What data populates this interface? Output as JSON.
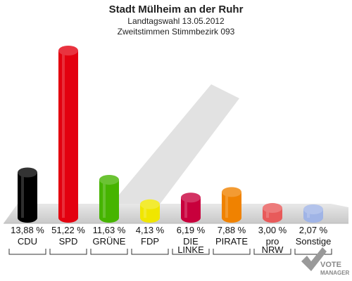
{
  "chart_data": {
    "type": "bar",
    "title": "Stadt Mülheim an der Ruhr",
    "subtitle1": "Landtagswahl 13.05.2012",
    "subtitle2": "Zweitstimmen Stimmbezirk 093",
    "categories": [
      {
        "lines": [
          "CDU"
        ]
      },
      {
        "lines": [
          "SPD"
        ]
      },
      {
        "lines": [
          "GRÜNE"
        ]
      },
      {
        "lines": [
          "FDP"
        ]
      },
      {
        "lines": [
          "DIE",
          "LINKE"
        ]
      },
      {
        "lines": [
          "PIRATE"
        ]
      },
      {
        "lines": [
          "pro",
          "NRW"
        ]
      },
      {
        "lines": [
          "Sonstige"
        ]
      }
    ],
    "values": [
      13.88,
      51.22,
      11.63,
      4.13,
      6.19,
      7.88,
      3.0,
      2.07
    ],
    "value_labels": [
      "13,88 %",
      "51,22 %",
      "11,63 %",
      "4,13 %",
      "6,19 %",
      "7,88 %",
      "3,00 %",
      "2,07 %"
    ],
    "colors": [
      "#000000",
      "#e3000f",
      "#46b400",
      "#f0e600",
      "#c8003c",
      "#f08200",
      "#e85a5a",
      "#a0b4e6"
    ],
    "ylim": [
      0,
      55
    ]
  },
  "logo": {
    "line1": "VOTE",
    "line2": "MANAGER"
  }
}
